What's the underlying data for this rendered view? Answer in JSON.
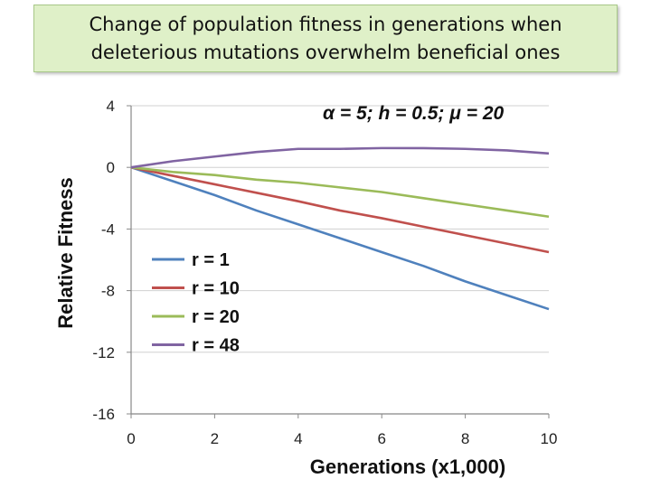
{
  "slide": {
    "title_line1": "Change of population fitness in generations when",
    "title_line2": "deleterious mutations overwhelm beneficial ones"
  },
  "chart_data": {
    "type": "line",
    "annotation": "α = 5; h = 0.5;  μ = 20",
    "xlabel": "Generations (x1,000)",
    "ylabel": "Relative Fitness",
    "xlim": [
      0,
      10
    ],
    "ylim": [
      -16,
      4
    ],
    "xticks": [
      0,
      2,
      4,
      6,
      8,
      10
    ],
    "yticks": [
      4,
      0,
      -4,
      -8,
      -12,
      -16
    ],
    "grid": true,
    "legend_position": "left-middle",
    "x": [
      0,
      1,
      2,
      3,
      4,
      5,
      6,
      7,
      8,
      9,
      10
    ],
    "series": [
      {
        "name": "r = 1",
        "color": "#4f81bd",
        "values": [
          0,
          -0.9,
          -1.8,
          -2.8,
          -3.7,
          -4.6,
          -5.5,
          -6.4,
          -7.4,
          -8.3,
          -9.2
        ]
      },
      {
        "name": "r = 10",
        "color": "#c0504d",
        "values": [
          0,
          -0.55,
          -1.1,
          -1.65,
          -2.2,
          -2.8,
          -3.3,
          -3.85,
          -4.4,
          -4.95,
          -5.5
        ]
      },
      {
        "name": "r = 20",
        "color": "#9bbb59",
        "values": [
          0,
          -0.3,
          -0.5,
          -0.8,
          -1.0,
          -1.3,
          -1.6,
          -2.0,
          -2.4,
          -2.8,
          -3.2
        ]
      },
      {
        "name": "r = 48",
        "color": "#8064a2",
        "values": [
          0,
          0.4,
          0.7,
          1.0,
          1.2,
          1.2,
          1.25,
          1.25,
          1.2,
          1.1,
          0.9
        ]
      }
    ]
  }
}
